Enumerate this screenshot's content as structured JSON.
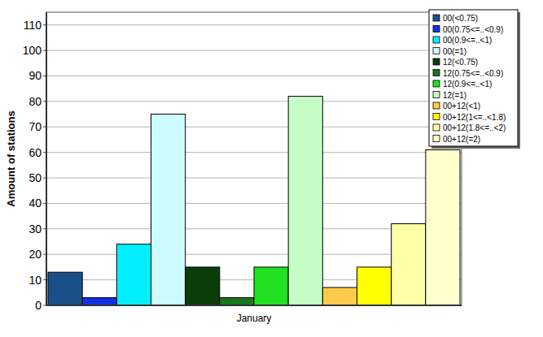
{
  "chart_data": {
    "type": "bar",
    "categories": [
      "January"
    ],
    "y_label": "Amount of stations",
    "ylim": [
      0,
      115
    ],
    "yticks": [
      0,
      10,
      20,
      30,
      40,
      50,
      60,
      70,
      80,
      90,
      100,
      110
    ],
    "grid": true,
    "legend": "top-right",
    "series": [
      {
        "name": "00(<0.75)",
        "color": "#1b4f8a",
        "values": [
          13
        ]
      },
      {
        "name": "00(0.75<=..<0.9)",
        "color": "#1530e8",
        "values": [
          3
        ]
      },
      {
        "name": "00(0.9<=..<1)",
        "color": "#00f0ff",
        "values": [
          24
        ]
      },
      {
        "name": "00(=1)",
        "color": "#ccfcff",
        "values": [
          75
        ]
      },
      {
        "name": "12(<0.75)",
        "color": "#0b3d0b",
        "values": [
          15
        ]
      },
      {
        "name": "12(0.75<=..<0.9)",
        "color": "#17781c",
        "values": [
          3
        ]
      },
      {
        "name": "12(0.9<=..<1)",
        "color": "#22e022",
        "values": [
          15
        ]
      },
      {
        "name": "12(=1)",
        "color": "#c6fcc6",
        "values": [
          82
        ]
      },
      {
        "name": "00+12(<1)",
        "color": "#ffcc4a",
        "values": [
          7
        ]
      },
      {
        "name": "00+12(1<=..<1.8)",
        "color": "#ffff00",
        "values": [
          15
        ]
      },
      {
        "name": "00+12(1.8<=..<2)",
        "color": "#ffffa8",
        "values": [
          32
        ]
      },
      {
        "name": "00+12(=2)",
        "color": "#ffffcc",
        "values": [
          61
        ]
      }
    ]
  }
}
